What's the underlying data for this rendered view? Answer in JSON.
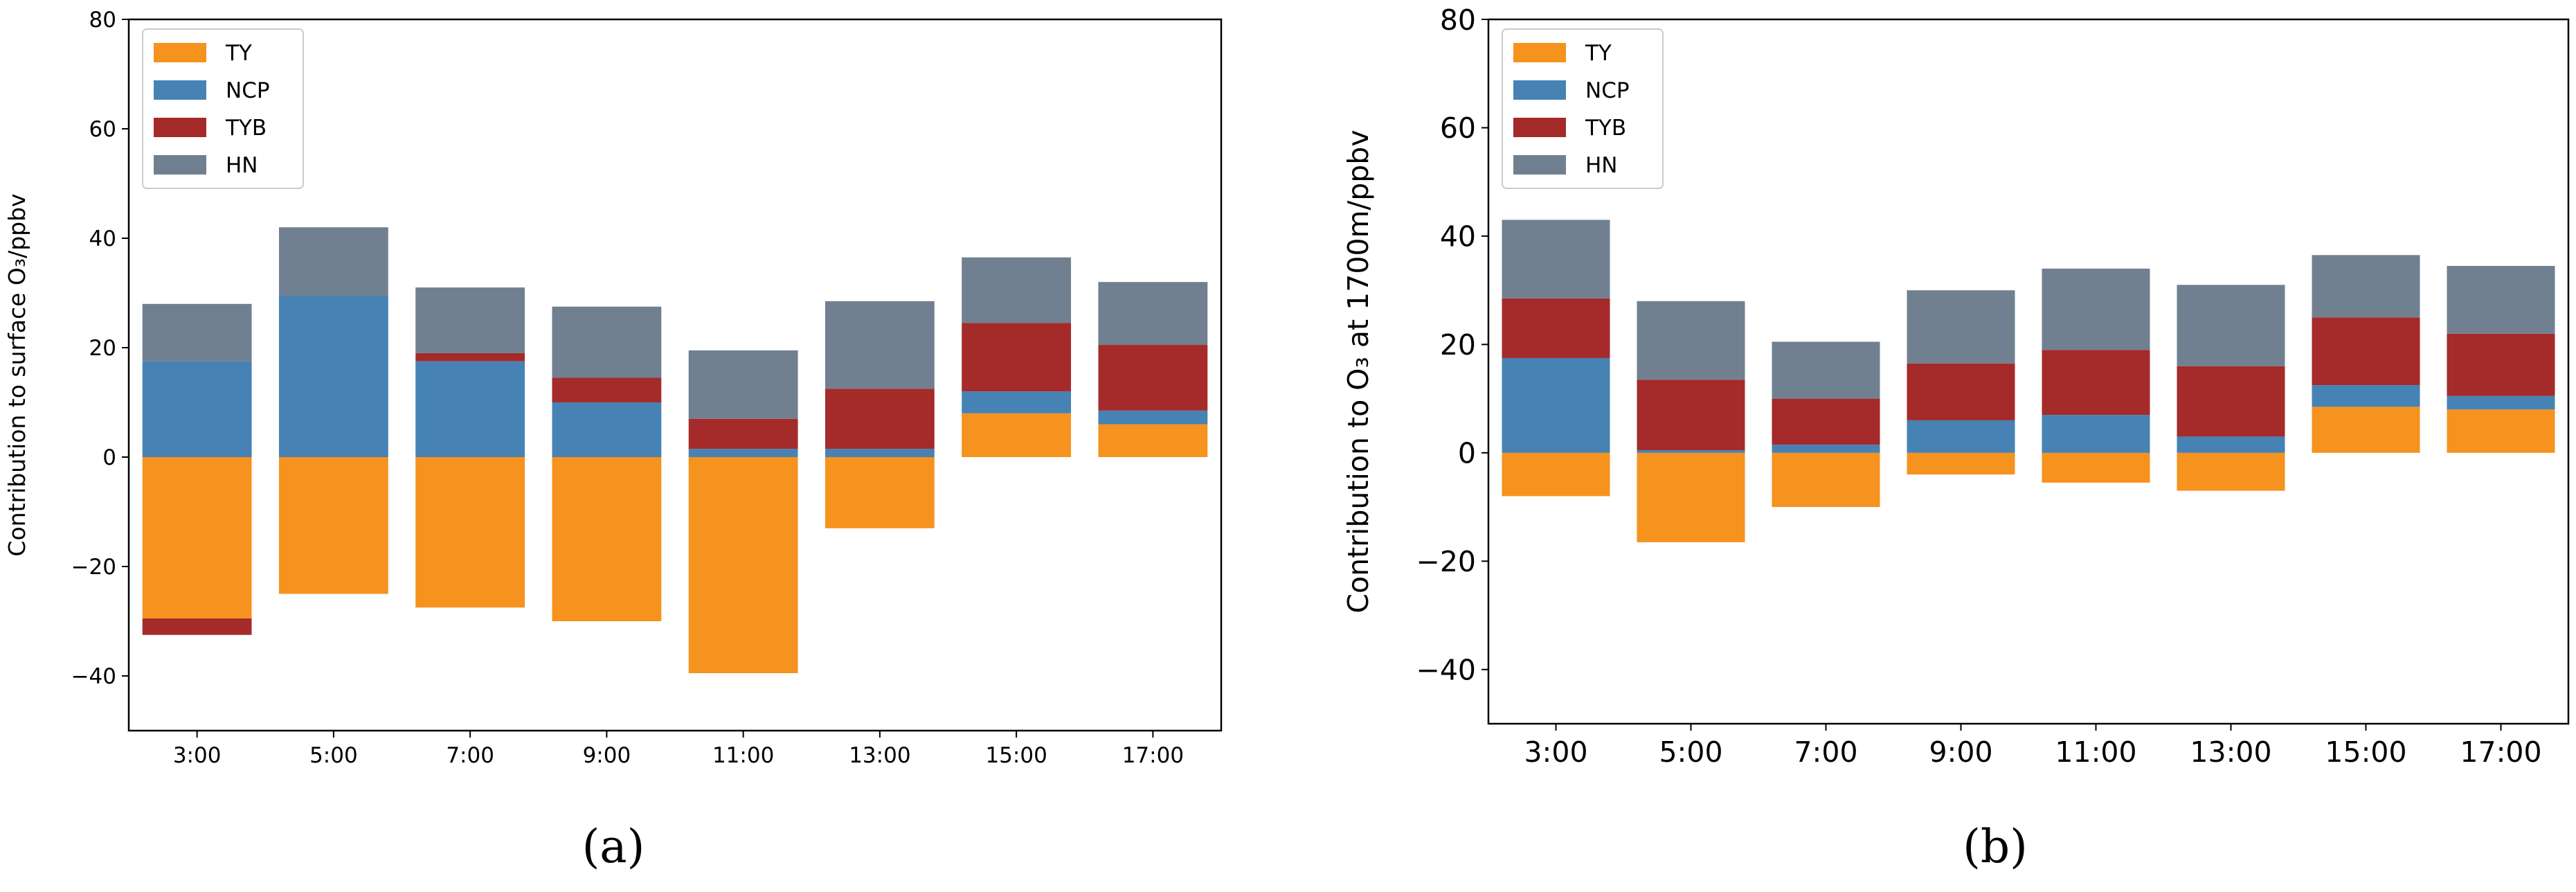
{
  "colors": {
    "TY": "#f6921e",
    "NCP": "#4682b4",
    "TYB": "#a52a2a",
    "HN": "#708090"
  },
  "chart_data": [
    {
      "type": "bar",
      "stacked": true,
      "panel_label": "(a)",
      "ylabel": "Contribution to surface O₃/ppbv",
      "ylim": [
        -50,
        80
      ],
      "yticks": [
        -40,
        -20,
        0,
        20,
        40,
        60,
        80
      ],
      "categories": [
        "3:00",
        "5:00",
        "7:00",
        "9:00",
        "11:00",
        "13:00",
        "15:00",
        "17:00"
      ],
      "legend": {
        "entries": [
          "TY",
          "NCP",
          "TYB",
          "HN"
        ],
        "placement": "top-left"
      },
      "series": [
        {
          "name": "TY",
          "values": [
            -29.5,
            -25,
            -27.5,
            -30,
            -39.5,
            -13,
            8,
            6
          ]
        },
        {
          "name": "NCP",
          "values": [
            17.5,
            29.5,
            17.5,
            10,
            1.5,
            1.5,
            4,
            2.5
          ]
        },
        {
          "name": "TYB",
          "values": [
            -3,
            0,
            1.5,
            4.5,
            5.5,
            11,
            12.5,
            12
          ]
        },
        {
          "name": "HN",
          "values": [
            10.5,
            12.5,
            12,
            13,
            12.5,
            16,
            12,
            11.5
          ]
        }
      ]
    },
    {
      "type": "bar",
      "stacked": true,
      "panel_label": "(b)",
      "ylabel": "Contribution to O₃ at 1700m/ppbv",
      "ylim": [
        -50,
        80
      ],
      "yticks": [
        -40,
        -20,
        0,
        20,
        40,
        60,
        80
      ],
      "categories": [
        "3:00",
        "5:00",
        "7:00",
        "9:00",
        "11:00",
        "13:00",
        "15:00",
        "17:00"
      ],
      "legend": {
        "entries": [
          "TY",
          "NCP",
          "TYB",
          "HN"
        ],
        "placement": "top-left"
      },
      "series": [
        {
          "name": "TY",
          "values": [
            -8,
            -16.5,
            -10,
            -4,
            -5.5,
            -7,
            8.5,
            8
          ]
        },
        {
          "name": "NCP",
          "values": [
            17.5,
            0.5,
            1.5,
            6,
            7,
            3,
            4,
            2.5
          ]
        },
        {
          "name": "TYB",
          "values": [
            11,
            13,
            8.5,
            10.5,
            12,
            13,
            12.5,
            11.5
          ]
        },
        {
          "name": "HN",
          "values": [
            14.5,
            14.5,
            10.5,
            13.5,
            15,
            15,
            11.5,
            12.5
          ]
        }
      ]
    }
  ]
}
